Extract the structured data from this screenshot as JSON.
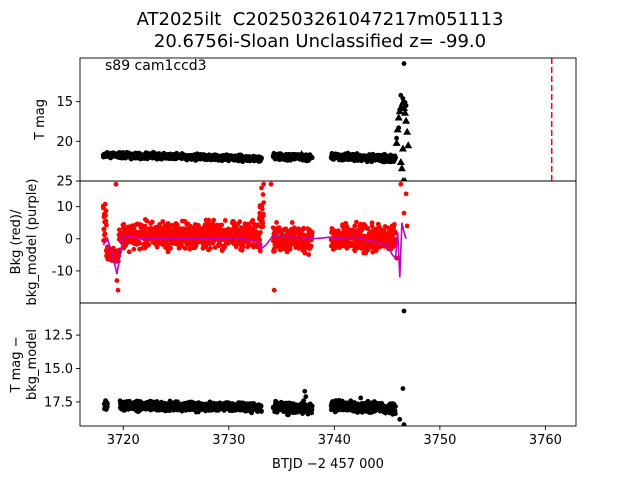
{
  "title": {
    "line1": "AT2025ilt  C202503261047217m051113",
    "line2": "20.6756i-Sloan Unclassified z= -99.0"
  },
  "chart_data": [
    {
      "type": "scatter",
      "panel": "top",
      "annotation": "s89 cam1ccd3",
      "ylabel": "T mag",
      "yinverted": true,
      "ylim": [
        25,
        9.5
      ],
      "yticks": [
        15,
        20,
        25
      ],
      "grid": false,
      "series": [
        {
          "marker": "circle",
          "color": "#000000",
          "segments": [
            {
              "x": [
                3718.1,
                3733.1
              ],
              "y": [
                21.7,
                22.2
              ],
              "spread": 0.5
            },
            {
              "x": [
                3734.2,
                3737.9
              ],
              "y": [
                21.8,
                22.1
              ],
              "spread": 0.6
            },
            {
              "x": [
                3739.7,
                3745.8
              ],
              "y": [
                21.9,
                22.2
              ],
              "spread": 0.6
            }
          ],
          "points": [
            {
              "x": 3746.3,
              "y": 14.2
            },
            {
              "x": 3746.5,
              "y": 14.6
            },
            {
              "x": 3746.7,
              "y": 15.1
            },
            {
              "x": 3746.8,
              "y": 15.5
            },
            {
              "x": 3746.6,
              "y": 10.2
            },
            {
              "x": 3745.9,
              "y": 19.6
            },
            {
              "x": 3746.1,
              "y": 18.3
            }
          ]
        },
        {
          "marker": "triangle",
          "color": "#000000",
          "points": [
            {
              "x": 3736.9,
              "y": 21.6
            },
            {
              "x": 3737.2,
              "y": 21.9
            },
            {
              "x": 3745.9,
              "y": 20.2
            },
            {
              "x": 3746.0,
              "y": 18.5
            },
            {
              "x": 3746.1,
              "y": 17.0
            },
            {
              "x": 3746.2,
              "y": 16.2
            },
            {
              "x": 3746.3,
              "y": 15.7
            },
            {
              "x": 3746.5,
              "y": 15.1
            },
            {
              "x": 3746.6,
              "y": 15.8
            },
            {
              "x": 3746.7,
              "y": 16.4
            },
            {
              "x": 3746.8,
              "y": 17.4
            },
            {
              "x": 3746.9,
              "y": 18.8
            },
            {
              "x": 3747.0,
              "y": 20.5
            },
            {
              "x": 3746.3,
              "y": 22.6
            },
            {
              "x": 3746.4,
              "y": 23.4
            },
            {
              "x": 3746.5,
              "y": 20.9
            },
            {
              "x": 3746.5,
              "y": 25.0
            },
            {
              "x": 3746.7,
              "y": 25.0
            }
          ]
        }
      ],
      "vline": {
        "x": 3760.6,
        "color": "#ff0000",
        "style": "dashed"
      }
    },
    {
      "type": "scatter",
      "panel": "middle",
      "ylabel": "Bkg (red)/\nbkg_model (purple)",
      "ylim": [
        -20,
        18
      ],
      "yticks": [
        -10,
        0,
        10
      ],
      "grid": false,
      "series": [
        {
          "name": "Bkg",
          "color": "#ff0000",
          "marker": "circle",
          "segments": [
            {
              "x": [
                3718.1,
                3718.4
              ],
              "base": 6,
              "spread": 9
            },
            {
              "x": [
                3718.4,
                3719.6
              ],
              "base": -5,
              "spread": 3
            },
            {
              "x": [
                3719.6,
                3733.0
              ],
              "base": 1,
              "spread": 6
            },
            {
              "x": [
                3732.9,
                3733.3
              ],
              "base": 9,
              "spread": 9
            },
            {
              "x": [
                3734.2,
                3737.9
              ],
              "base": 0,
              "spread": 6
            },
            {
              "x": [
                3739.7,
                3745.8
              ],
              "base": 0,
              "spread": 6
            }
          ],
          "points": [
            {
              "x": 3719.3,
              "y": 17
            },
            {
              "x": 3719.4,
              "y": -13
            },
            {
              "x": 3719.5,
              "y": -16
            },
            {
              "x": 3733.3,
              "y": 17
            },
            {
              "x": 3734.0,
              "y": 17
            },
            {
              "x": 3734.3,
              "y": -16
            },
            {
              "x": 3745.9,
              "y": -6
            },
            {
              "x": 3746.3,
              "y": 17
            },
            {
              "x": 3746.6,
              "y": 8
            },
            {
              "x": 3746.8,
              "y": 14
            },
            {
              "x": 3746.9,
              "y": 4
            }
          ]
        },
        {
          "name": "bkg_model",
          "color": "#bf00bf",
          "marker": "line",
          "x": [
            3718.1,
            3718.5,
            3719.0,
            3719.4,
            3720.0,
            3722,
            3725,
            3728,
            3731,
            3732.8,
            3733.1,
            3733.5,
            3734.2,
            3735,
            3736,
            3737,
            3738,
            3739.6,
            3740,
            3742,
            3744,
            3745.0,
            3745.5,
            3745.8,
            3746.0,
            3746.2,
            3746.4,
            3746.6,
            3746.8
          ],
          "y": [
            -2,
            0,
            -5,
            -11,
            1,
            0,
            0.2,
            0,
            0.3,
            -1,
            -3,
            -2,
            1,
            0.5,
            0.5,
            0.3,
            0,
            0.5,
            0,
            0.5,
            -1,
            -2,
            -5,
            -6,
            2,
            -12,
            5,
            2,
            0
          ]
        }
      ]
    },
    {
      "type": "scatter",
      "panel": "bottom",
      "ylabel": "T mag −\nbkg_model",
      "yinverted": true,
      "ylim": [
        19.3,
        10.1
      ],
      "yticks": [
        12.5,
        15.0,
        17.5
      ],
      "xlabel": "BTJD −2 457 000",
      "xlim": [
        3715.9,
        3762.9
      ],
      "xticks": [
        3720,
        3730,
        3740,
        3750,
        3760
      ],
      "grid": false,
      "series": [
        {
          "marker": "circle",
          "color": "#000000",
          "segments": [
            {
              "x": [
                3718.2,
                3718.5
              ],
              "y": [
                17.8,
                17.8
              ],
              "spread": 0.5
            },
            {
              "x": [
                3719.7,
                3733.1
              ],
              "y": [
                17.8,
                17.9
              ],
              "spread": 0.5
            },
            {
              "x": [
                3734.2,
                3737.9
              ],
              "y": [
                17.9,
                18.0
              ],
              "spread": 0.6
            },
            {
              "x": [
                3739.7,
                3745.8
              ],
              "y": [
                17.8,
                18.0
              ],
              "spread": 0.6
            }
          ],
          "points": [
            {
              "x": 3737.2,
              "y": 16.7
            },
            {
              "x": 3737.3,
              "y": 17.1
            },
            {
              "x": 3737.1,
              "y": 17.4
            },
            {
              "x": 3742.5,
              "y": 17.2
            },
            {
              "x": 3746.6,
              "y": 10.7
            },
            {
              "x": 3746.5,
              "y": 16.5
            },
            {
              "x": 3746.2,
              "y": 18.8
            },
            {
              "x": 3746.6,
              "y": 19.2
            }
          ]
        }
      ]
    }
  ]
}
